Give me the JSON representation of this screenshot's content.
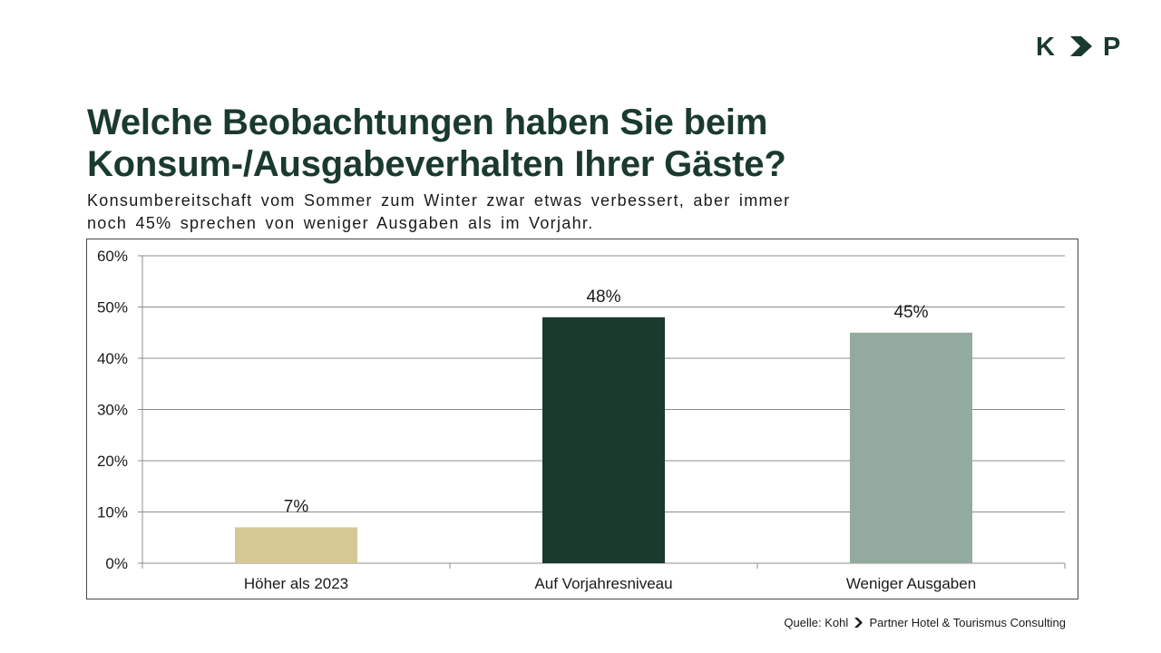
{
  "logo": {
    "left_letter": "K",
    "right_letter": "P",
    "icon": "chevron-right-icon",
    "color": "#1a3a2e"
  },
  "header": {
    "title": "Welche Beobachtungen haben Sie beim Konsum-/Ausgabeverhalten Ihrer Gäste?",
    "subtitle": "Konsumbereitschaft vom Sommer zum Winter zwar etwas verbessert, aber immer noch 45% sprechen von weniger Ausgaben als im Vorjahr."
  },
  "chart_data": {
    "type": "bar",
    "categories": [
      "Höher als 2023",
      "Auf Vorjahresniveau",
      "Weniger Ausgaben"
    ],
    "values": [
      7,
      48,
      45
    ],
    "data_labels": [
      "7%",
      "48%",
      "45%"
    ],
    "bar_colors": [
      "#d4c894",
      "#1a3a2e",
      "#93ab9f"
    ],
    "ylim": [
      0,
      60
    ],
    "yticks": [
      0,
      10,
      20,
      30,
      40,
      50,
      60
    ],
    "ytick_labels": [
      "0%",
      "10%",
      "20%",
      "30%",
      "40%",
      "50%",
      "60%"
    ],
    "grid": true,
    "legend": "none"
  },
  "footer": {
    "source_prefix": "Quelle: Kohl",
    "source_suffix": "Partner Hotel & Tourismus Consulting",
    "icon": "arrowhead-right-icon"
  }
}
